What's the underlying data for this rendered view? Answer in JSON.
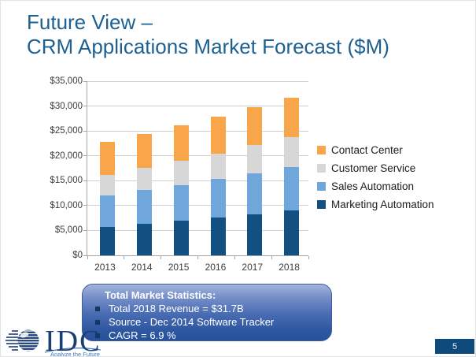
{
  "slide": {
    "title_line1": "Future View –",
    "title_line2": "CRM Applications Market Forecast ($M)",
    "page_number": "5",
    "background_color": "#FFFFFF",
    "title_color": "#1E6091"
  },
  "chart_data": {
    "type": "bar",
    "stacked": true,
    "stack_order": "bottom_to_top",
    "categories": [
      "2013",
      "2014",
      "2015",
      "2016",
      "2017",
      "2018"
    ],
    "series": [
      {
        "name": "Marketing Automation",
        "color": "#115081",
        "values": [
          5700,
          6300,
          7000,
          7600,
          8200,
          9000
        ]
      },
      {
        "name": "Sales Automation",
        "color": "#6FA7DC",
        "values": [
          6400,
          6900,
          7100,
          7700,
          8200,
          8800
        ]
      },
      {
        "name": "Customer Service",
        "color": "#D7D7D7",
        "values": [
          4100,
          4400,
          4900,
          5200,
          5700,
          5900
        ]
      },
      {
        "name": "Contact Center",
        "color": "#F9A54A",
        "values": [
          6600,
          6800,
          7200,
          7400,
          7700,
          8000
        ]
      }
    ],
    "totals": [
      22800,
      24400,
      26200,
      27900,
      29800,
      31700
    ],
    "ylim": [
      0,
      35000
    ],
    "ytick_step": 5000,
    "ytick_labels": [
      "$0",
      "$5,000",
      "$10,000",
      "$15,000",
      "$20,000",
      "$25,000",
      "$30,000",
      "$35,000"
    ],
    "grid": true,
    "legend_position": "right",
    "legend_order_top_to_bottom": [
      "Contact Center",
      "Customer Service",
      "Sales Automation",
      "Marketing Automation"
    ]
  },
  "stats_box": {
    "title": "Total Market Statistics:",
    "bullets": [
      "Total 2018 Revenue = $31.7B",
      "Source - Dec 2014 Software Tracker",
      "CAGR = 6.9 %"
    ]
  },
  "logo": {
    "name": "IDC",
    "tagline": "Analyze the Future"
  }
}
